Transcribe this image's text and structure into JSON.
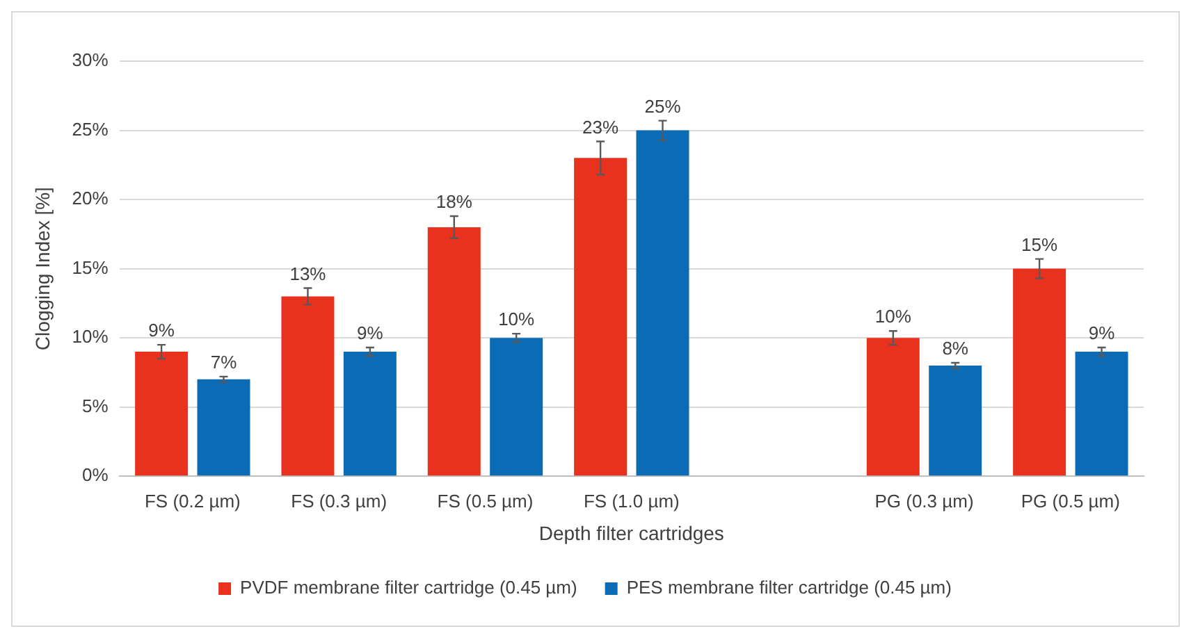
{
  "chart_data": {
    "type": "bar",
    "xlabel": "Depth filter cartridges",
    "ylabel": "Clogging Index [%]",
    "categories": [
      "FS (0.2 µm)",
      "FS (0.3 µm)",
      "FS (0.5 µm)",
      "FS (1.0 µm)",
      null,
      "PG (0.3 µm)",
      "PG (0.5 µm)"
    ],
    "series": [
      {
        "name": "PVDF membrane filter cartridge (0.45 µm)",
        "color": "#e8321e",
        "values": [
          9,
          13,
          18,
          23,
          null,
          10,
          15
        ],
        "errors": [
          0.5,
          0.6,
          0.8,
          1.2,
          null,
          0.5,
          0.7
        ],
        "value_labels": [
          "9%",
          "13%",
          "18%",
          "23%",
          null,
          "10%",
          "15%"
        ]
      },
      {
        "name": "PES membrane filter cartridge (0.45 µm)",
        "color": "#0b6cb5",
        "values": [
          7,
          9,
          10,
          25,
          null,
          8,
          9
        ],
        "errors": [
          0.2,
          0.3,
          0.3,
          0.7,
          null,
          0.2,
          0.3
        ],
        "value_labels": [
          "7%",
          "9%",
          "10%",
          "25%",
          null,
          "8%",
          "9%"
        ]
      }
    ],
    "ylim": [
      0,
      30
    ],
    "yticks": [
      {
        "value": 0,
        "label": "0%"
      },
      {
        "value": 5,
        "label": "5%"
      },
      {
        "value": 10,
        "label": "10%"
      },
      {
        "value": 15,
        "label": "15%"
      },
      {
        "value": 20,
        "label": "20%"
      },
      {
        "value": 25,
        "label": "25%"
      },
      {
        "value": 30,
        "label": "30%"
      }
    ],
    "grid": "y",
    "legend": "bottom"
  }
}
